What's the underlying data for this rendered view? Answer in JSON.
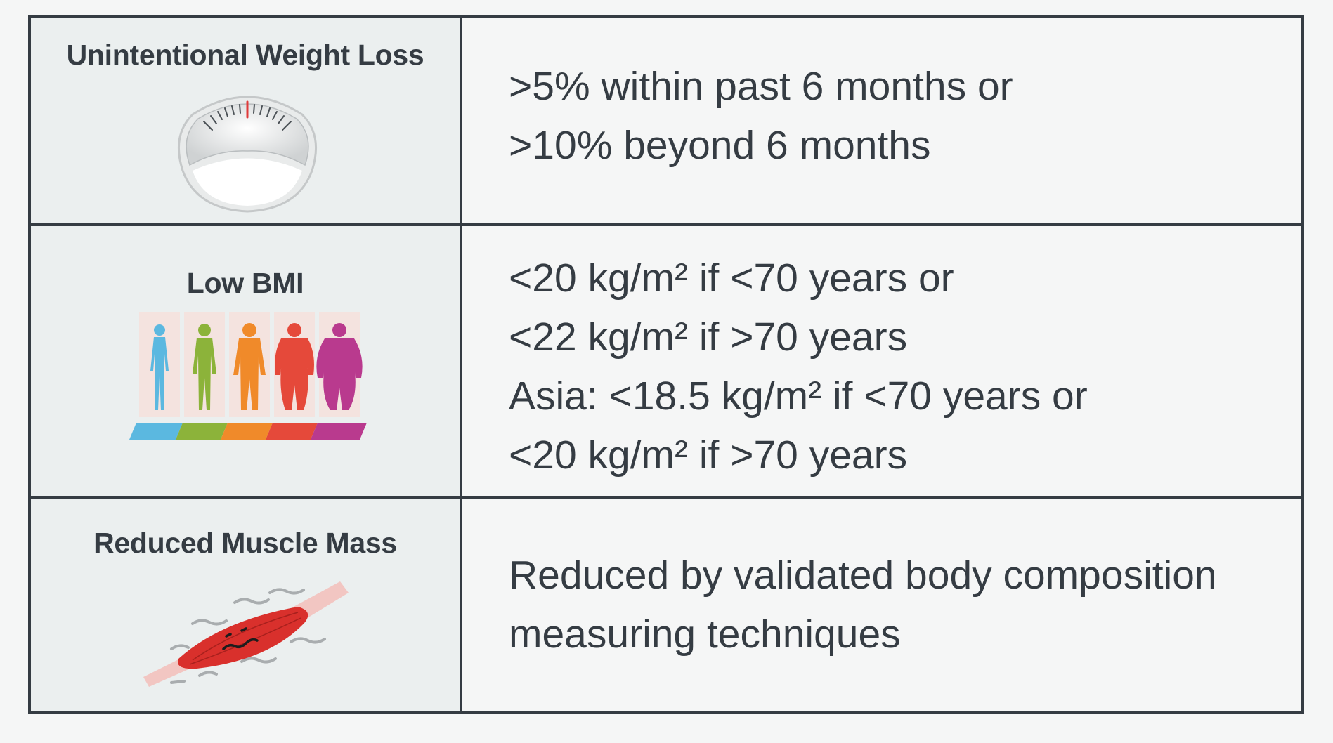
{
  "criteria": [
    {
      "label": "Unintentional Weight Loss",
      "icon": "weighing-scale-icon",
      "lines": [
        ">5% within past 6 months or",
        ">10% beyond 6 months"
      ]
    },
    {
      "label": "Low BMI",
      "icon": "body-silhouettes-bmi-icon",
      "lines": [
        "<20 kg/m² if <70 years or",
        "<22 kg/m² if >70 years",
        "Asia: <18.5 kg/m² if <70 years or",
        "<20 kg/m² if >70 years"
      ]
    },
    {
      "label": "Reduced Muscle Mass",
      "icon": "muscle-fiber-icon",
      "lines": [
        "Reduced by validated body composition",
        "measuring techniques"
      ]
    }
  ],
  "colors": {
    "border": "#353c43",
    "label_bg": "#ebefef",
    "value_bg": "#f5f6f6",
    "bmi_blue": "#5bb8e0",
    "bmi_green": "#8cb33a",
    "bmi_orange": "#f08a2a",
    "bmi_red": "#e5493a",
    "bmi_magenta": "#b93a8e",
    "muscle_red": "#d9302c"
  }
}
